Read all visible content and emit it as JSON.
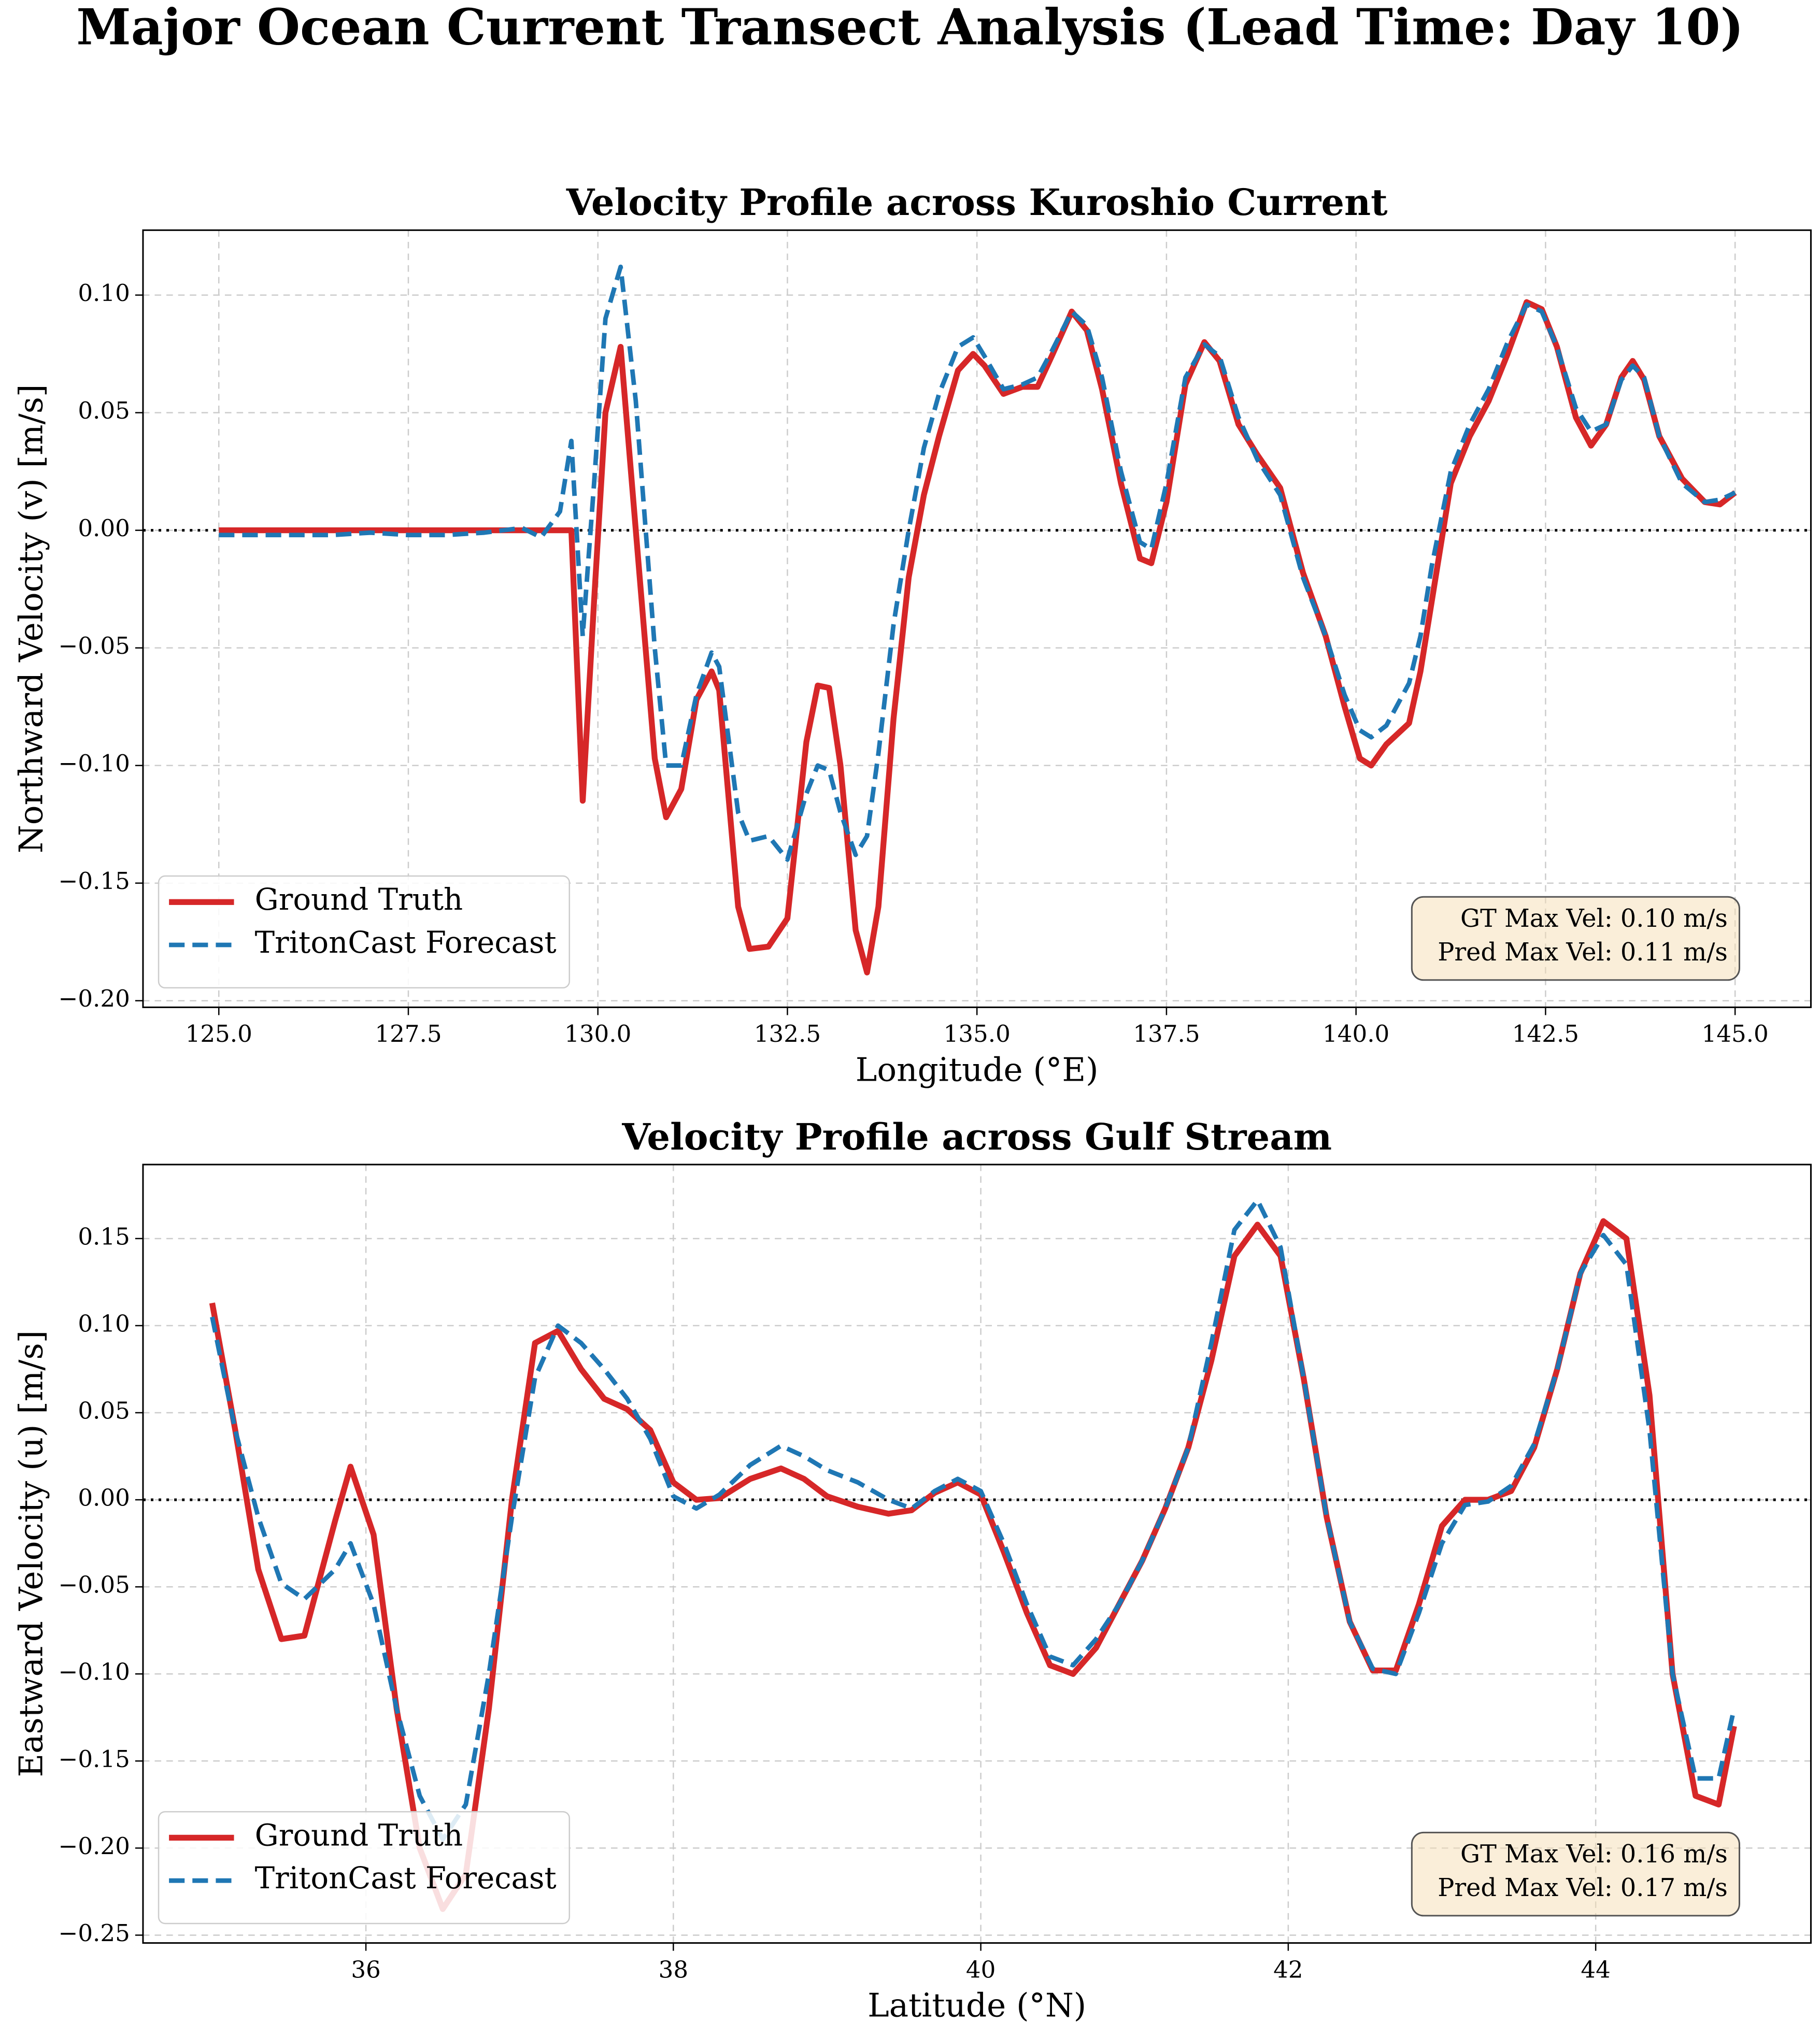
{
  "title": "Major Ocean Current Transect Analysis (Lead Time: Day 10)",
  "chart_data": [
    {
      "type": "line",
      "title": "Velocity Profile across Kuroshio Current",
      "xlabel": "Longitude (°E)",
      "ylabel": "Northward Velocity (v) [m/s]",
      "x": [
        125,
        125.5,
        126,
        126.5,
        127,
        127.5,
        128,
        128.5,
        129,
        129.25,
        129.5,
        129.65,
        129.8,
        129.95,
        130.1,
        130.3,
        130.5,
        130.75,
        130.9,
        131.1,
        131.3,
        131.5,
        131.6,
        131.85,
        132.0,
        132.25,
        132.5,
        132.75,
        132.9,
        133.05,
        133.2,
        133.4,
        133.55,
        133.7,
        133.9,
        134.1,
        134.3,
        134.5,
        134.75,
        134.95,
        135.1,
        135.35,
        135.6,
        135.8,
        136.0,
        136.25,
        136.45,
        136.65,
        136.9,
        137.15,
        137.3,
        137.5,
        137.75,
        138.0,
        138.2,
        138.45,
        138.7,
        139.0,
        139.3,
        139.6,
        139.85,
        140.05,
        140.2,
        140.4,
        140.7,
        140.85,
        141.0,
        141.25,
        141.5,
        141.75,
        142.0,
        142.25,
        142.45,
        142.65,
        142.9,
        143.1,
        143.3,
        143.5,
        143.65,
        143.8,
        144.0,
        144.3,
        144.6,
        144.8,
        145.0
      ],
      "series": [
        {
          "name": "Ground Truth",
          "color": "#d62728",
          "linestyle": "solid",
          "values": [
            0,
            0,
            0,
            0,
            0,
            0,
            0,
            0,
            0,
            0,
            0,
            0,
            -0.115,
            -0.03,
            0.05,
            0.078,
            0.0,
            -0.097,
            -0.122,
            -0.11,
            -0.072,
            -0.06,
            -0.068,
            -0.16,
            -0.178,
            -0.177,
            -0.165,
            -0.09,
            -0.066,
            -0.067,
            -0.1,
            -0.17,
            -0.188,
            -0.16,
            -0.08,
            -0.02,
            0.015,
            0.04,
            0.068,
            0.075,
            0.07,
            0.058,
            0.061,
            0.061,
            0.075,
            0.093,
            0.085,
            0.06,
            0.02,
            -0.012,
            -0.014,
            0.012,
            0.062,
            0.08,
            0.072,
            0.045,
            0.032,
            0.018,
            -0.018,
            -0.045,
            -0.075,
            -0.097,
            -0.1,
            -0.091,
            -0.082,
            -0.06,
            -0.03,
            0.02,
            0.04,
            0.055,
            0.075,
            0.097,
            0.094,
            0.078,
            0.048,
            0.036,
            0.045,
            0.065,
            0.072,
            0.064,
            0.04,
            0.022,
            0.012,
            0.011,
            0.016
          ]
        },
        {
          "name": "TritonCast Forecast",
          "color": "#1f77b4",
          "linestyle": "dashed",
          "values": [
            -0.002,
            -0.002,
            -0.002,
            -0.002,
            -0.001,
            -0.002,
            -0.002,
            -0.001,
            0.001,
            -0.003,
            0.008,
            0.038,
            -0.045,
            0.02,
            0.09,
            0.112,
            0.055,
            -0.05,
            -0.1,
            -0.1,
            -0.07,
            -0.052,
            -0.058,
            -0.12,
            -0.132,
            -0.13,
            -0.14,
            -0.112,
            -0.1,
            -0.102,
            -0.12,
            -0.138,
            -0.13,
            -0.095,
            -0.04,
            0.0,
            0.035,
            0.058,
            0.078,
            0.082,
            0.074,
            0.06,
            0.062,
            0.065,
            0.077,
            0.093,
            0.087,
            0.065,
            0.025,
            -0.005,
            -0.008,
            0.02,
            0.065,
            0.079,
            0.074,
            0.048,
            0.03,
            0.015,
            -0.02,
            -0.045,
            -0.07,
            -0.085,
            -0.088,
            -0.083,
            -0.065,
            -0.045,
            -0.015,
            0.025,
            0.045,
            0.06,
            0.08,
            0.096,
            0.093,
            0.078,
            0.052,
            0.042,
            0.045,
            0.064,
            0.07,
            0.065,
            0.04,
            0.02,
            0.012,
            0.013,
            0.016
          ]
        }
      ],
      "xlim": [
        124,
        146
      ],
      "ylim": [
        -0.2028,
        0.1276
      ],
      "xticks": [
        {
          "value": 125,
          "label": "125.0"
        },
        {
          "value": 127.5,
          "label": "127.5"
        },
        {
          "value": 130,
          "label": "130.0"
        },
        {
          "value": 132.5,
          "label": "132.5"
        },
        {
          "value": 135,
          "label": "135.0"
        },
        {
          "value": 137.5,
          "label": "137.5"
        },
        {
          "value": 140,
          "label": "140.0"
        },
        {
          "value": 142.5,
          "label": "142.5"
        },
        {
          "value": 145,
          "label": "145.0"
        }
      ],
      "yticks": [
        {
          "value": -0.2,
          "label": "−0.20"
        },
        {
          "value": -0.15,
          "label": "−0.15"
        },
        {
          "value": -0.1,
          "label": "−0.10"
        },
        {
          "value": -0.05,
          "label": "−0.05"
        },
        {
          "value": 0,
          "label": "0.00"
        },
        {
          "value": 0.05,
          "label": "0.05"
        },
        {
          "value": 0.1,
          "label": "0.10"
        }
      ],
      "grid": true,
      "legend": "lower left",
      "reference_line": 0,
      "annotation": [
        "GT Max Vel: 0.10 m/s",
        "Pred Max Vel: 0.11 m/s"
      ]
    },
    {
      "type": "line",
      "title": "Velocity Profile across Gulf Stream",
      "xlabel": "Latitude (°N)",
      "ylabel": "Eastward Velocity (u) [m/s]",
      "x": [
        35.0,
        35.15,
        35.3,
        35.45,
        35.6,
        35.8,
        35.9,
        36.05,
        36.2,
        36.35,
        36.5,
        36.65,
        36.8,
        36.95,
        37.1,
        37.25,
        37.4,
        37.55,
        37.7,
        37.85,
        38.0,
        38.15,
        38.3,
        38.5,
        38.7,
        38.85,
        39.0,
        39.2,
        39.4,
        39.55,
        39.7,
        39.85,
        40.0,
        40.15,
        40.3,
        40.45,
        40.6,
        40.75,
        40.9,
        41.05,
        41.2,
        41.35,
        41.5,
        41.65,
        41.8,
        41.95,
        42.1,
        42.25,
        42.4,
        42.55,
        42.7,
        42.85,
        43.0,
        43.15,
        43.3,
        43.45,
        43.6,
        43.75,
        43.9,
        44.05,
        44.2,
        44.35,
        44.5,
        44.65,
        44.8,
        44.9
      ],
      "series": [
        {
          "name": "Ground Truth",
          "color": "#d62728",
          "linestyle": "solid",
          "values": [
            0.113,
            0.04,
            -0.04,
            -0.08,
            -0.078,
            -0.012,
            0.019,
            -0.02,
            -0.12,
            -0.2,
            -0.235,
            -0.215,
            -0.12,
            0.0,
            0.09,
            0.097,
            0.075,
            0.058,
            0.052,
            0.04,
            0.01,
            0.0,
            0.001,
            0.012,
            0.018,
            0.012,
            0.002,
            -0.004,
            -0.008,
            -0.006,
            0.004,
            0.01,
            0.003,
            -0.03,
            -0.065,
            -0.095,
            -0.1,
            -0.085,
            -0.06,
            -0.035,
            -0.005,
            0.03,
            0.08,
            0.14,
            0.158,
            0.14,
            0.07,
            -0.01,
            -0.07,
            -0.098,
            -0.098,
            -0.06,
            -0.015,
            0.0,
            0.0,
            0.005,
            0.03,
            0.075,
            0.13,
            0.16,
            0.15,
            0.06,
            -0.1,
            -0.17,
            -0.175,
            -0.13
          ]
        },
        {
          "name": "TritonCast Forecast",
          "color": "#1f77b4",
          "linestyle": "dashed",
          "values": [
            0.105,
            0.04,
            -0.01,
            -0.048,
            -0.057,
            -0.04,
            -0.025,
            -0.06,
            -0.12,
            -0.17,
            -0.195,
            -0.175,
            -0.1,
            -0.01,
            0.07,
            0.1,
            0.09,
            0.075,
            0.058,
            0.035,
            0.002,
            -0.005,
            0.003,
            0.02,
            0.031,
            0.025,
            0.017,
            0.01,
            0.0,
            -0.005,
            0.005,
            0.012,
            0.005,
            -0.025,
            -0.06,
            -0.09,
            -0.095,
            -0.08,
            -0.06,
            -0.035,
            -0.005,
            0.03,
            0.09,
            0.155,
            0.172,
            0.145,
            0.07,
            -0.01,
            -0.07,
            -0.097,
            -0.1,
            -0.065,
            -0.025,
            -0.003,
            -0.001,
            0.008,
            0.032,
            0.075,
            0.13,
            0.152,
            0.135,
            0.04,
            -0.1,
            -0.16,
            -0.16,
            -0.12
          ]
        }
      ],
      "xlim": [
        34.55,
        45.4
      ],
      "ylim": [
        -0.2545,
        0.1925
      ],
      "xticks": [
        36,
        38,
        40,
        42,
        44
      ],
      "yticks": [
        {
          "value": -0.25,
          "label": "−0.25"
        },
        {
          "value": -0.2,
          "label": "−0.20"
        },
        {
          "value": -0.15,
          "label": "−0.15"
        },
        {
          "value": -0.1,
          "label": "−0.10"
        },
        {
          "value": -0.05,
          "label": "−0.05"
        },
        {
          "value": 0,
          "label": "0.00"
        },
        {
          "value": 0.05,
          "label": "0.05"
        },
        {
          "value": 0.1,
          "label": "0.10"
        },
        {
          "value": 0.15,
          "label": "0.15"
        }
      ],
      "grid": true,
      "legend": "lower left",
      "reference_line": 0,
      "annotation": [
        "GT Max Vel: 0.16 m/s",
        "Pred Max Vel: 0.17 m/s"
      ]
    }
  ]
}
